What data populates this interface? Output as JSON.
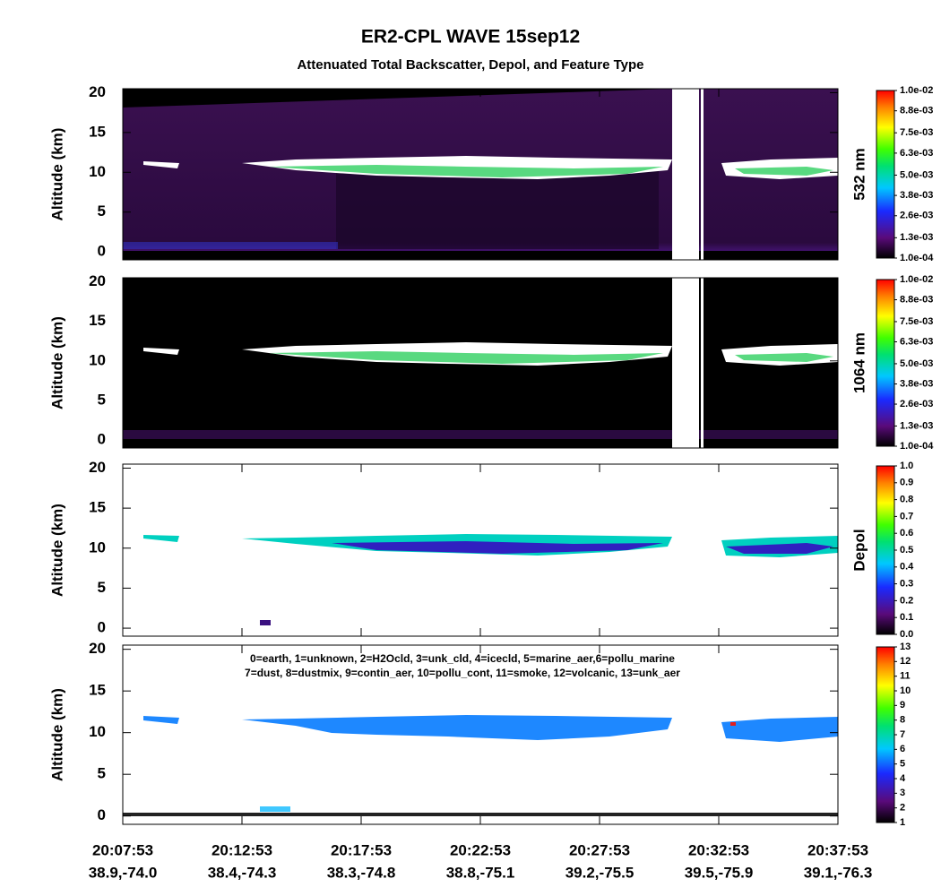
{
  "title": "ER2-CPL WAVE 15sep12",
  "subtitle": "Attenuated Total Backscatter, Depol, and Feature Type",
  "x_axis": {
    "xlim": [
      0,
      30
    ],
    "xticks": [
      {
        "value": 0,
        "label": "20:07:53"
      },
      {
        "value": 5,
        "label": "20:12:53"
      },
      {
        "value": 10,
        "label": "20:17:53"
      },
      {
        "value": 15,
        "label": "20:22:53"
      },
      {
        "value": 20,
        "label": "20:27:53"
      },
      {
        "value": 25,
        "label": "20:32:53"
      },
      {
        "value": 30,
        "label": "20:37:53"
      }
    ],
    "xtick_sublabels": [
      "38.9,-74.0",
      "38.4,-74.3",
      "38.3,-74.8",
      "38.8,-75.1",
      "39.2,-75.5",
      "39.5,-75.9",
      "39.1,-76.3"
    ]
  },
  "chart_data": [
    {
      "type": "heatmap",
      "ylabel": "Altitude (km)",
      "ylim": [
        -1,
        20.5
      ],
      "yticks": [
        0,
        5,
        10,
        15,
        20
      ],
      "colorbar_label": "532 nm",
      "colormap": "rainbow",
      "clim": [
        0.0001,
        0.01
      ],
      "cticks": [
        {
          "value": 0.0001,
          "label": "1.0e-04"
        },
        {
          "value": 0.0013,
          "label": "1.3e-03"
        },
        {
          "value": 0.0026,
          "label": "2.6e-03"
        },
        {
          "value": 0.0038,
          "label": "3.8e-03"
        },
        {
          "value": 0.005,
          "label": "5.0e-03"
        },
        {
          "value": 0.0063,
          "label": "6.3e-03"
        },
        {
          "value": 0.0075,
          "label": "7.5e-03"
        },
        {
          "value": 0.0088,
          "label": "8.8e-03"
        },
        {
          "value": 0.01,
          "label": "1.0e-02"
        }
      ]
    },
    {
      "type": "heatmap",
      "ylabel": "Altitude (km)",
      "ylim": [
        -1,
        20.5
      ],
      "yticks": [
        0,
        5,
        10,
        15,
        20
      ],
      "colorbar_label": "1064 nm",
      "colormap": "rainbow",
      "clim": [
        0.0001,
        0.01
      ],
      "cticks": [
        {
          "value": 0.0001,
          "label": "1.0e-04"
        },
        {
          "value": 0.0013,
          "label": "1.3e-03"
        },
        {
          "value": 0.0026,
          "label": "2.6e-03"
        },
        {
          "value": 0.0038,
          "label": "3.8e-03"
        },
        {
          "value": 0.005,
          "label": "5.0e-03"
        },
        {
          "value": 0.0063,
          "label": "6.3e-03"
        },
        {
          "value": 0.0075,
          "label": "7.5e-03"
        },
        {
          "value": 0.0088,
          "label": "8.8e-03"
        },
        {
          "value": 0.01,
          "label": "1.0e-02"
        }
      ]
    },
    {
      "type": "heatmap",
      "ylabel": "Altitude (km)",
      "ylim": [
        -1,
        20.5
      ],
      "yticks": [
        0,
        5,
        10,
        15,
        20
      ],
      "colorbar_label": "Depol",
      "colormap": "rainbow",
      "clim": [
        0,
        1
      ],
      "cticks": [
        {
          "value": 0,
          "label": "0.0"
        },
        {
          "value": 0.1,
          "label": "0.1"
        },
        {
          "value": 0.2,
          "label": "0.2"
        },
        {
          "value": 0.3,
          "label": "0.3"
        },
        {
          "value": 0.4,
          "label": "0.4"
        },
        {
          "value": 0.5,
          "label": "0.5"
        },
        {
          "value": 0.6,
          "label": "0.6"
        },
        {
          "value": 0.7,
          "label": "0.7"
        },
        {
          "value": 0.8,
          "label": "0.8"
        },
        {
          "value": 0.9,
          "label": "0.9"
        },
        {
          "value": 1,
          "label": "1.0"
        }
      ]
    },
    {
      "type": "heatmap",
      "ylabel": "Altitude (km)",
      "ylim": [
        -1,
        20.5
      ],
      "yticks": [
        0,
        5,
        10,
        15,
        20
      ],
      "colormap": "rainbow",
      "clim": [
        1,
        13
      ],
      "cticks": [
        1,
        2,
        3,
        4,
        5,
        6,
        7,
        8,
        9,
        10,
        11,
        12,
        13
      ],
      "annotation": [
        "0=earth, 1=unknown, 2=H2Ocld, 3=unk_cld, 4=icecld, 5=marine_aer,6=pollu_marine",
        "7=dust, 8=dustmix, 9=contin_aer, 10=pollu_cont, 11=smoke, 12=volcanic, 13=unk_aer"
      ]
    }
  ]
}
